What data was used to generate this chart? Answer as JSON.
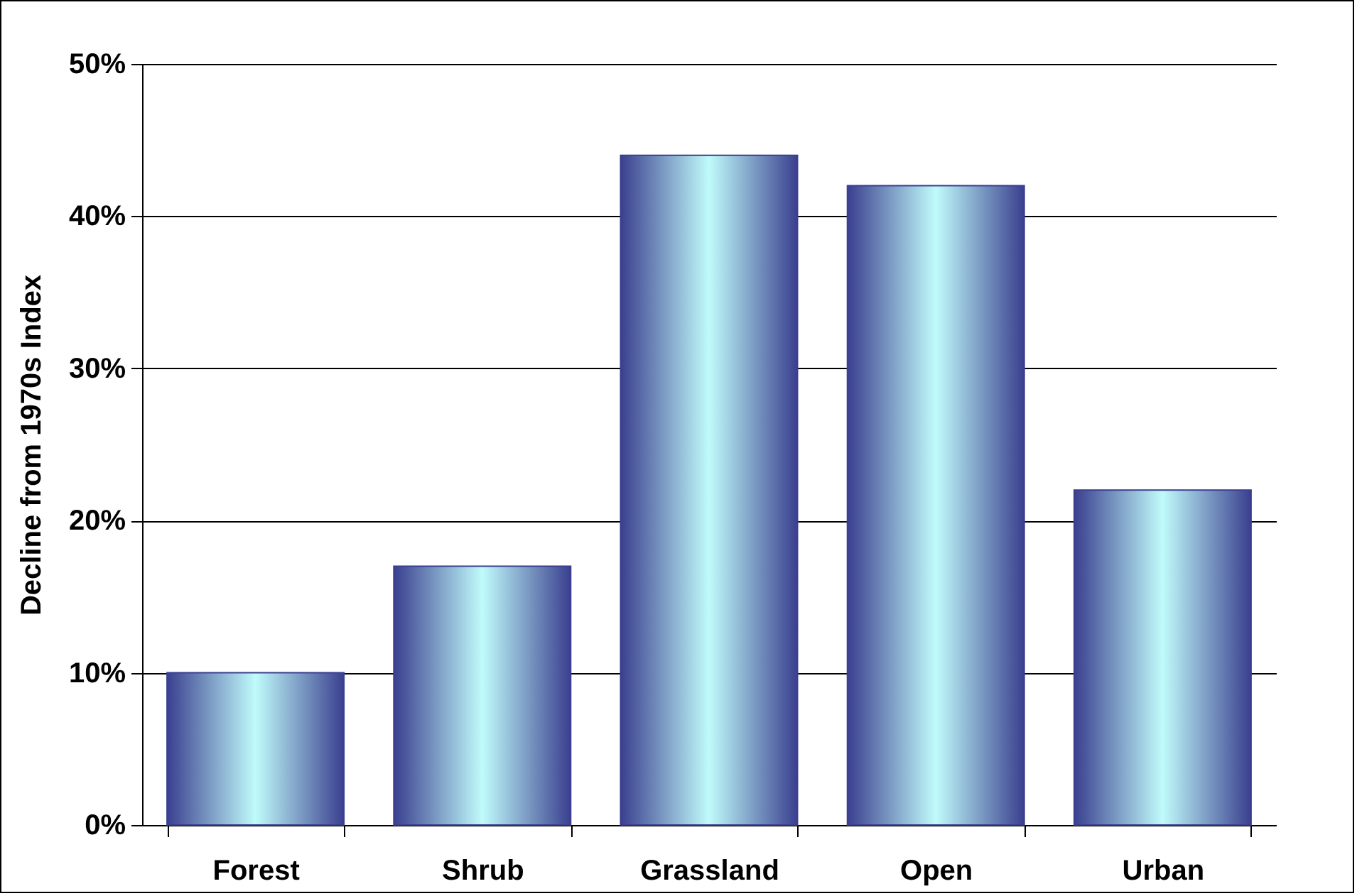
{
  "chart_data": {
    "type": "bar",
    "ylabel": "Decline from 1970s Index",
    "categories": [
      "Forest",
      "Shrub",
      "Grassland",
      "Open",
      "Urban"
    ],
    "values": [
      10,
      17,
      44,
      42,
      22
    ],
    "color": "#3a3f8f",
    "ylim": [
      0,
      50
    ],
    "yticks": [
      {
        "value": 0,
        "label": "0%"
      },
      {
        "value": 10,
        "label": "10%"
      },
      {
        "value": 20,
        "label": "20%"
      },
      {
        "value": 30,
        "label": "30%"
      },
      {
        "value": 40,
        "label": "40%"
      },
      {
        "value": 50,
        "label": "50%"
      }
    ],
    "grid": "y"
  }
}
